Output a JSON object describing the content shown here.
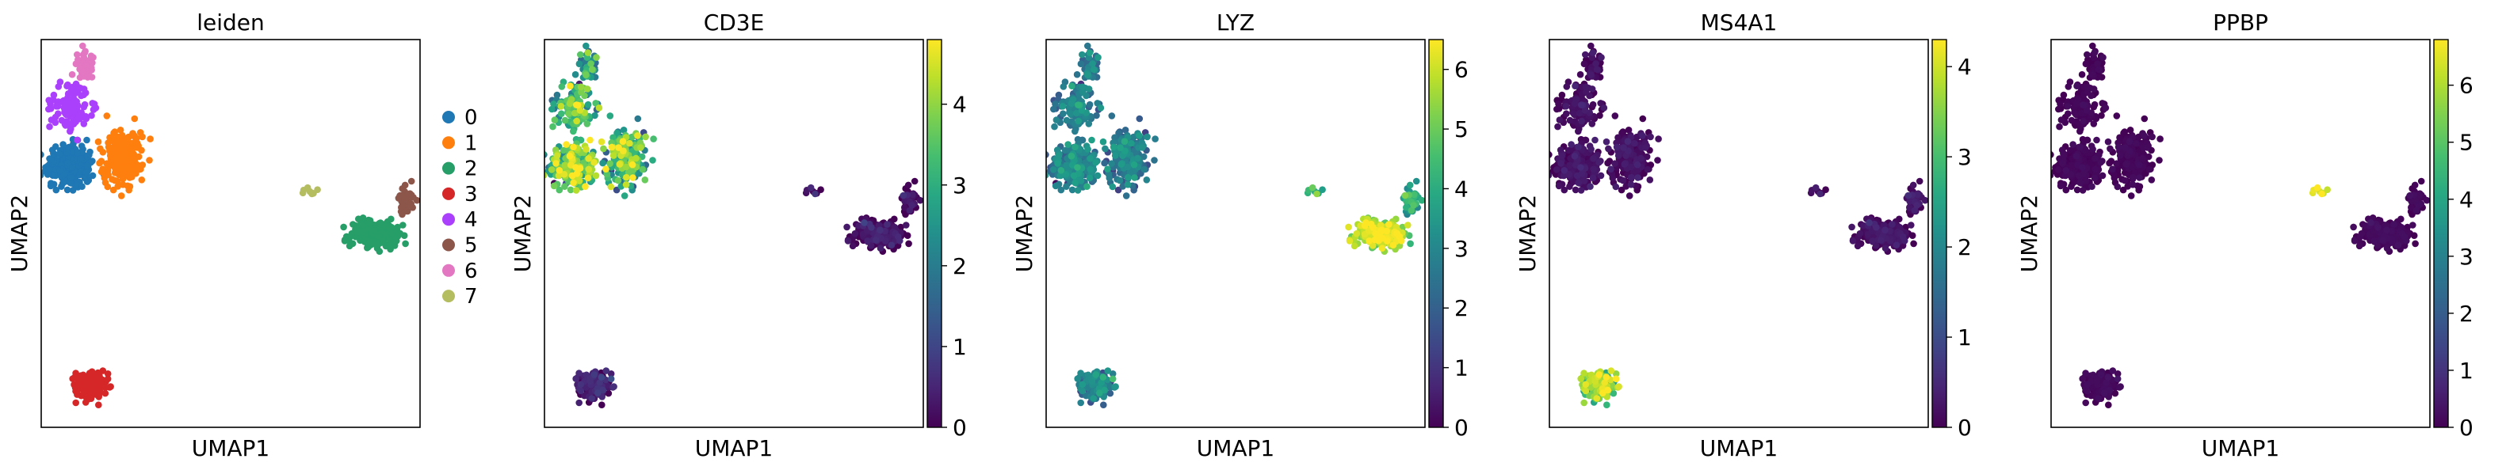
{
  "chart_data": [
    {
      "type": "scatter",
      "title": "leiden",
      "xlabel": "UMAP1",
      "ylabel": "UMAP2",
      "xlim": [
        -10,
        16
      ],
      "ylim": [
        -10,
        13
      ],
      "colorbar": null,
      "legend": {
        "placement": "right",
        "entries": [
          {
            "label": "0",
            "color": "#1f77b4"
          },
          {
            "label": "1",
            "color": "#ff7f0e"
          },
          {
            "label": "2",
            "color": "#279e68"
          },
          {
            "label": "3",
            "color": "#d62728"
          },
          {
            "label": "4",
            "color": "#aa40fc"
          },
          {
            "label": "5",
            "color": "#8c564b"
          },
          {
            "label": "6",
            "color": "#e377c2"
          },
          {
            "label": "7",
            "color": "#b5bd61"
          }
        ]
      },
      "clusters": [
        {
          "label": "0",
          "cx": -8.0,
          "cy": 5.5,
          "sx": 1.5,
          "sy": 1.2,
          "n": 260
        },
        {
          "label": "1",
          "cx": -4.5,
          "cy": 6.0,
          "sx": 1.2,
          "sy": 1.5,
          "n": 220
        },
        {
          "label": "2",
          "cx": 13.0,
          "cy": 1.5,
          "sx": 1.6,
          "sy": 0.7,
          "n": 260
        },
        {
          "label": "3",
          "cx": -6.5,
          "cy": -7.5,
          "sx": 1.0,
          "sy": 0.8,
          "n": 150
        },
        {
          "label": "4",
          "cx": -8.0,
          "cy": 9.0,
          "sx": 1.2,
          "sy": 1.2,
          "n": 120
        },
        {
          "label": "5",
          "cx": 15.0,
          "cy": 3.5,
          "sx": 0.5,
          "sy": 0.8,
          "n": 45
        },
        {
          "label": "6",
          "cx": -7.0,
          "cy": 11.5,
          "sx": 0.6,
          "sy": 0.8,
          "n": 45
        },
        {
          "label": "7",
          "cx": 8.5,
          "cy": 4.0,
          "sx": 0.5,
          "sy": 0.3,
          "n": 8
        }
      ]
    },
    {
      "type": "scatter",
      "title": "CD3E",
      "xlabel": "UMAP1",
      "ylabel": "UMAP2",
      "xlim": [
        -10,
        16
      ],
      "ylim": [
        -10,
        13
      ],
      "colorbar": {
        "min": 0,
        "max": 4.8,
        "ticks": [
          0,
          1,
          2,
          3,
          4
        ],
        "tick_labels": [
          "0",
          "1",
          "2",
          "3",
          "4"
        ]
      },
      "cluster_expression_mean": {
        "0": 3.2,
        "1": 3.0,
        "2": 0.05,
        "3": 0.3,
        "4": 3.0,
        "5": 0.05,
        "6": 2.5,
        "7": 0.1
      },
      "cluster_expression_spread": 0.9
    },
    {
      "type": "scatter",
      "title": "LYZ",
      "xlabel": "UMAP1",
      "ylabel": "UMAP2",
      "xlim": [
        -10,
        16
      ],
      "ylim": [
        -10,
        13
      ],
      "colorbar": {
        "min": 0,
        "max": 6.5,
        "ticks": [
          0,
          1,
          2,
          3,
          4,
          5,
          6
        ],
        "tick_labels": [
          "0",
          "1",
          "2",
          "3",
          "4",
          "5",
          "6"
        ]
      },
      "cluster_expression_mean": {
        "0": 2.6,
        "1": 2.5,
        "2": 5.6,
        "3": 2.6,
        "4": 2.6,
        "5": 3.8,
        "6": 2.6,
        "7": 4.0
      },
      "cluster_expression_spread": 0.6
    },
    {
      "type": "scatter",
      "title": "MS4A1",
      "xlabel": "UMAP1",
      "ylabel": "UMAP2",
      "xlim": [
        -10,
        16
      ],
      "ylim": [
        -10,
        13
      ],
      "colorbar": {
        "min": 0,
        "max": 4.3,
        "ticks": [
          0,
          1,
          2,
          3,
          4
        ],
        "tick_labels": [
          "0",
          "1",
          "2",
          "3",
          "4"
        ]
      },
      "cluster_expression_mean": {
        "0": 0.1,
        "1": 0.1,
        "2": 0.1,
        "3": 3.4,
        "4": 0.1,
        "5": 0.2,
        "6": 0.1,
        "7": 0.1
      },
      "cluster_expression_spread": 0.5
    },
    {
      "type": "scatter",
      "title": "PPBP",
      "xlabel": "UMAP1",
      "ylabel": "UMAP2",
      "xlim": [
        -10,
        16
      ],
      "ylim": [
        -10,
        13
      ],
      "colorbar": {
        "min": 0,
        "max": 6.8,
        "ticks": [
          0,
          1,
          2,
          3,
          4,
          5,
          6
        ],
        "tick_labels": [
          "0",
          "1",
          "2",
          "3",
          "4",
          "5",
          "6"
        ]
      },
      "cluster_expression_mean": {
        "0": 0.05,
        "1": 0.05,
        "2": 0.1,
        "3": 0.1,
        "4": 0.05,
        "5": 0.1,
        "6": 0.05,
        "7": 6.4
      },
      "cluster_expression_spread": 0.3
    }
  ]
}
